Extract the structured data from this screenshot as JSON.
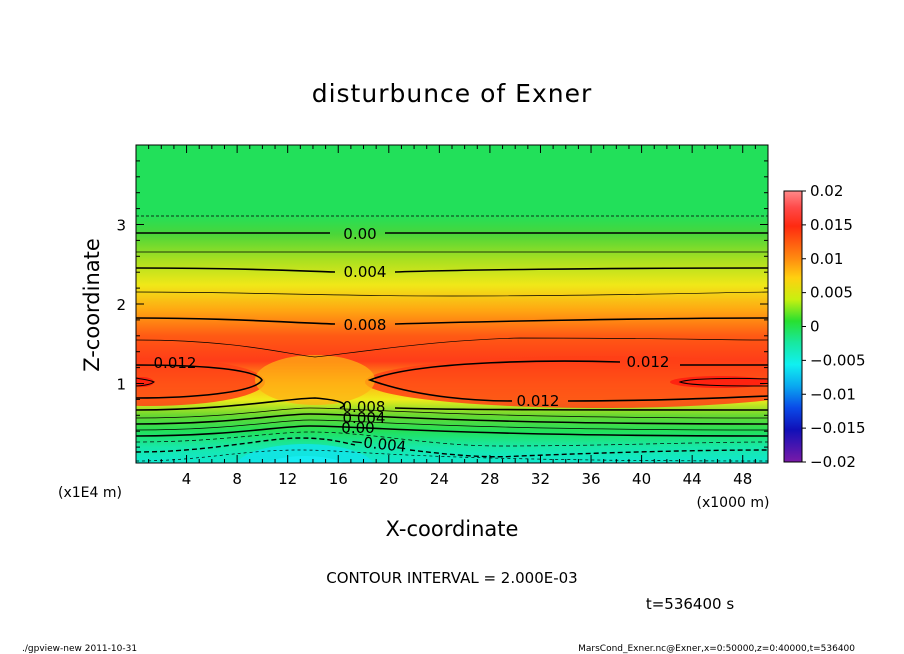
{
  "chart_data": {
    "type": "heatmap",
    "title": "disturbunce of Exner",
    "xlabel": "X-coordinate",
    "ylabel": "Z-coordinate",
    "x_unit": "(x1000 m)",
    "y_unit": "(x1E4 m)",
    "xlim": [
      0,
      50
    ],
    "ylim": [
      0,
      4
    ],
    "x_ticks": [
      4,
      8,
      12,
      16,
      20,
      24,
      28,
      32,
      36,
      40,
      44,
      48
    ],
    "y_ticks": [
      1,
      2,
      3
    ],
    "colorbar": {
      "min": -0.02,
      "max": 0.02,
      "ticks": [
        "0.02",
        "0.015",
        "0.01",
        "0.005",
        "0",
        "−0.005",
        "−0.01",
        "−0.015",
        "−0.02"
      ]
    },
    "contour_interval": "CONTOUR INTERVAL = 2.000E-03",
    "time_label": "t=536400 s",
    "contour_labels": [
      "0.00",
      "0.004",
      "0.008",
      "0.012",
      "0.012",
      "0.012",
      "0.008",
      "0.004",
      "0.00",
      "−0.004"
    ],
    "footer_left": "./gpview-new   2011-10-31",
    "footer_right": "MarsCond_Exner.nc@Exner,x=0:50000,z=0:40000,t=536400"
  }
}
